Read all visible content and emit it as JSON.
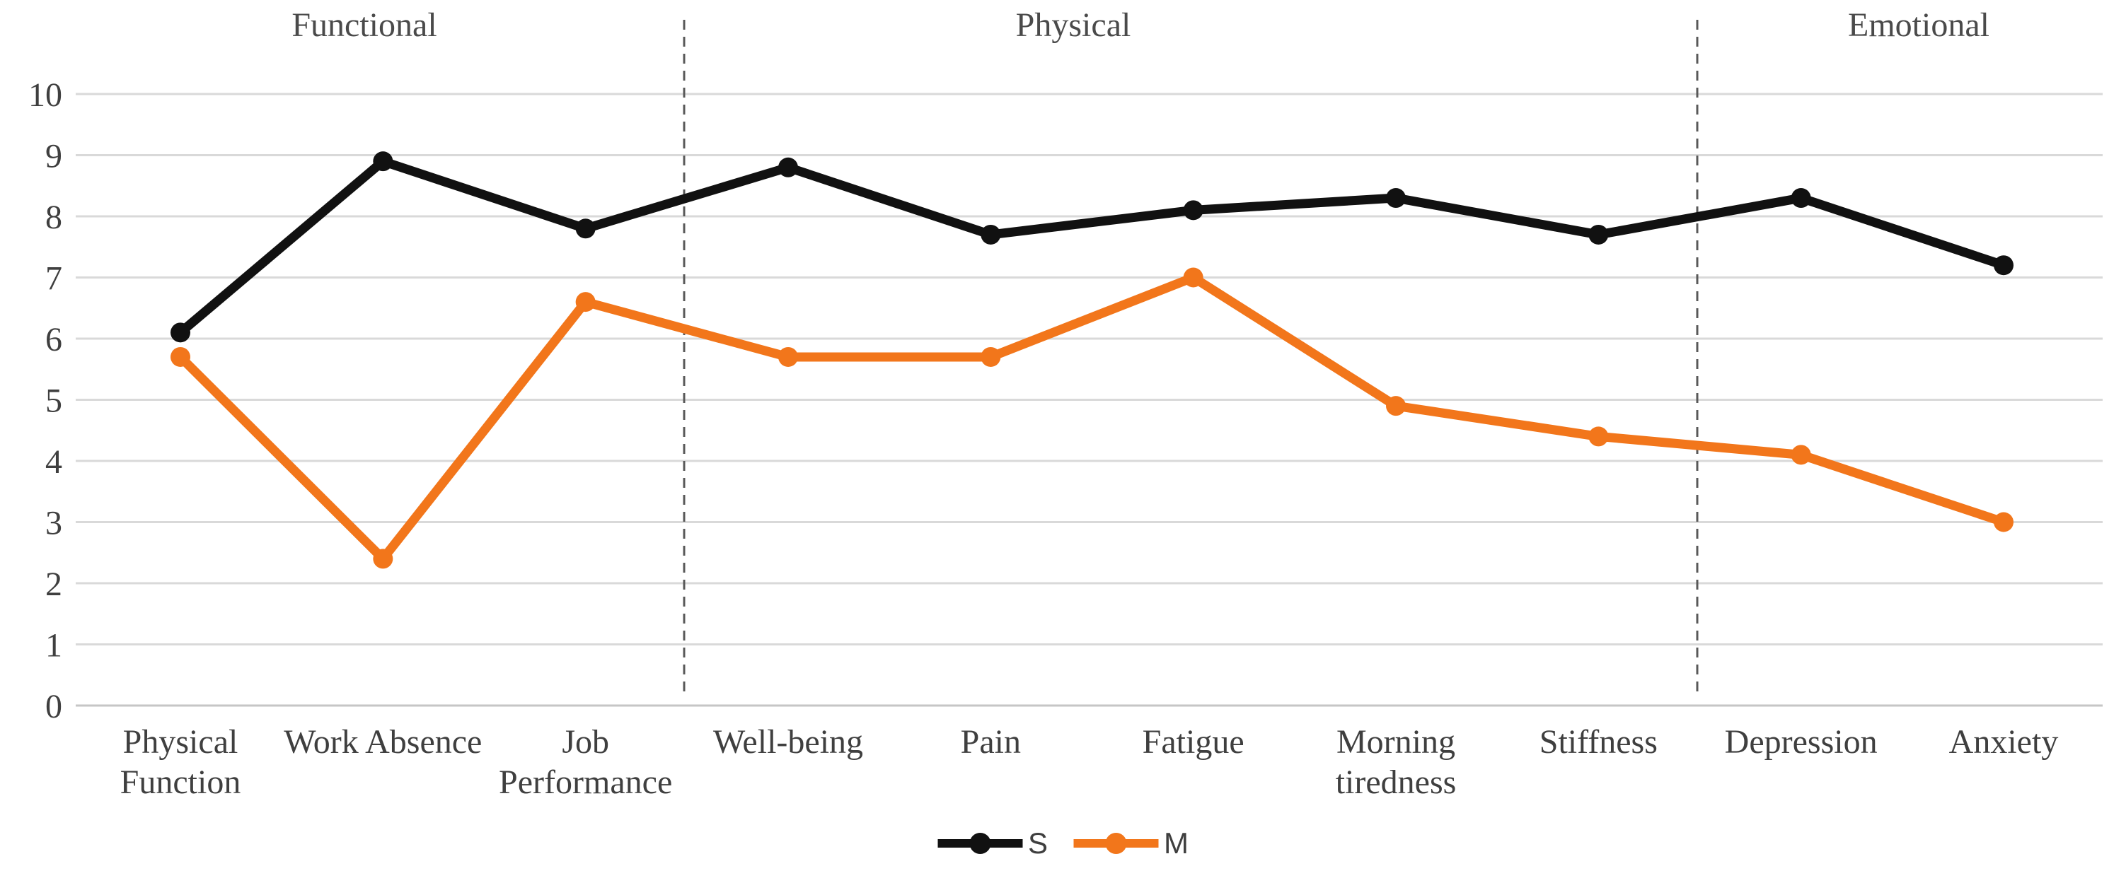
{
  "chart_data": {
    "type": "line",
    "title": "",
    "categories": [
      "Physical Function",
      "Work Absence",
      "Job Performance",
      "Well-being",
      "Pain",
      "Fatigue",
      "Morning tiredness",
      "Stiffness",
      "Depression",
      "Anxiety"
    ],
    "series": [
      {
        "name": "S",
        "color": "#111111",
        "values": [
          6.1,
          8.9,
          7.8,
          8.8,
          7.7,
          8.1,
          8.3,
          7.7,
          8.3,
          7.2
        ]
      },
      {
        "name": "M",
        "color": "#F2761B",
        "values": [
          5.7,
          2.4,
          6.6,
          5.7,
          5.7,
          7.0,
          4.9,
          4.4,
          4.1,
          3.0
        ]
      }
    ],
    "sections": [
      {
        "label": "Functional",
        "span_categories": [
          "Physical Function",
          "Work Absence",
          "Job Performance"
        ]
      },
      {
        "label": "Physical",
        "span_categories": [
          "Well-being",
          "Pain",
          "Fatigue",
          "Morning tiredness",
          "Stiffness"
        ]
      },
      {
        "label": "Emotional",
        "span_categories": [
          "Depression",
          "Anxiety"
        ]
      }
    ],
    "y_axis": {
      "min": 0,
      "max": 10,
      "step": 1
    },
    "xlabel": "",
    "ylabel": "",
    "grid": true,
    "legend_position": "bottom-center"
  },
  "styles": {
    "background": "#FFFFFF",
    "grid_color": "#D9D9D9",
    "axis_line_color": "#C6C6C6",
    "divider_color": "#595959",
    "label_color": "#3F3F3F",
    "section_label_color": "#4A4A4A",
    "legend_text_color": "#3F3F3F",
    "series_s_color": "#111111",
    "series_m_color": "#F2761B"
  }
}
